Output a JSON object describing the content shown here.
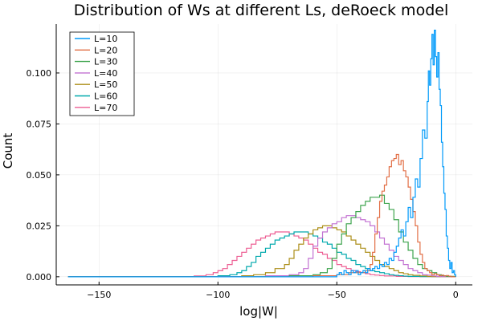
{
  "chart_data": {
    "type": "line",
    "title": "Distribution of Ws at different Ls, deRoeck model",
    "xlabel": "log|W|",
    "ylabel": "Count",
    "xlim": [
      -168,
      7
    ],
    "ylim": [
      -0.004,
      0.124
    ],
    "xticks": [
      -150,
      -100,
      -50,
      0
    ],
    "xtick_labels": [
      "−150",
      "−100",
      "−50",
      "0"
    ],
    "yticks": [
      0.0,
      0.025,
      0.05,
      0.075,
      0.1
    ],
    "ytick_labels": [
      "0.000",
      "0.025",
      "0.050",
      "0.075",
      "0.100"
    ],
    "grid": true,
    "legend_position": "top-left",
    "series": [
      {
        "name": "L=10",
        "color": "#009AFA",
        "x": [
          -163,
          -60,
          -50,
          -49,
          -48,
          -47,
          -46,
          -45,
          -44,
          -43,
          -42,
          -41,
          -40,
          -39,
          -38,
          -37,
          -36,
          -35,
          -34,
          -33,
          -32,
          -31,
          -30,
          -29,
          -28,
          -27,
          -26,
          -25,
          -24,
          -23,
          -22,
          -21,
          -20,
          -19,
          -18,
          -17,
          -16,
          -15,
          -14,
          -13,
          -12,
          -11.5,
          -11,
          -10.5,
          -10,
          -9.5,
          -9,
          -8.5,
          -8,
          -7.5,
          -7,
          -6.5,
          -6,
          -5.5,
          -5,
          -4.5,
          -4,
          -3.5,
          -3,
          -2.5,
          -2,
          -1.5,
          -1,
          -0.5,
          0
        ],
        "y": [
          0,
          0,
          0.001,
          0.002,
          0.001,
          0.003,
          0.002,
          0.001,
          0.003,
          0.002,
          0.003,
          0.001,
          0.002,
          0.003,
          0.002,
          0.004,
          0.003,
          0.004,
          0.005,
          0.004,
          0.006,
          0.005,
          0.007,
          0.006,
          0.009,
          0.008,
          0.012,
          0.015,
          0.019,
          0.023,
          0.02,
          0.027,
          0.034,
          0.029,
          0.039,
          0.048,
          0.044,
          0.058,
          0.072,
          0.068,
          0.086,
          0.101,
          0.094,
          0.107,
          0.119,
          0.104,
          0.121,
          0.108,
          0.098,
          0.11,
          0.092,
          0.084,
          0.066,
          0.054,
          0.041,
          0.033,
          0.02,
          0.014,
          0.008,
          0.004,
          0.007,
          0.002,
          0.003,
          0.001,
          0
        ]
      },
      {
        "name": "L=20",
        "color": "#E26F46",
        "x": [
          -163,
          -72,
          -60,
          -50,
          -45,
          -40,
          -38,
          -36,
          -35,
          -34,
          -33,
          -32,
          -31,
          -30,
          -29,
          -28,
          -27,
          -26,
          -25,
          -24,
          -23,
          -22,
          -21,
          -20,
          -19,
          -18,
          -17,
          -16,
          -15,
          -14,
          -13,
          -12,
          -11,
          -10,
          -9,
          -8,
          -7,
          -6,
          -5,
          -4,
          -3,
          -2,
          0
        ],
        "y": [
          0,
          0,
          0.0005,
          0.001,
          0.002,
          0.002,
          0.003,
          0.006,
          0.012,
          0.021,
          0.029,
          0.037,
          0.042,
          0.045,
          0.049,
          0.054,
          0.057,
          0.058,
          0.06,
          0.055,
          0.057,
          0.052,
          0.049,
          0.044,
          0.038,
          0.032,
          0.025,
          0.017,
          0.011,
          0.007,
          0.004,
          0.003,
          0.002,
          0.001,
          0.0015,
          0.001,
          0.0005,
          0.0008,
          0.0004,
          0.0006,
          0.0003,
          0,
          0
        ]
      },
      {
        "name": "L=30",
        "color": "#3DA44D",
        "x": [
          -163,
          -80,
          -70,
          -60,
          -57,
          -54,
          -52,
          -50,
          -48,
          -46,
          -44,
          -42,
          -40,
          -38,
          -36,
          -34,
          -32,
          -30,
          -28,
          -26,
          -24,
          -22,
          -20,
          -18,
          -16,
          -14,
          -12,
          -10,
          -8,
          -6,
          -4,
          0
        ],
        "y": [
          0,
          0,
          0.0005,
          0.001,
          0.002,
          0.004,
          0.009,
          0.016,
          0.021,
          0.026,
          0.029,
          0.032,
          0.035,
          0.037,
          0.039,
          0.039,
          0.04,
          0.036,
          0.033,
          0.028,
          0.022,
          0.017,
          0.013,
          0.009,
          0.006,
          0.004,
          0.003,
          0.002,
          0.001,
          0.0005,
          0.0002,
          0
        ]
      },
      {
        "name": "L=40",
        "color": "#C271D2",
        "x": [
          -163,
          -90,
          -80,
          -70,
          -66,
          -64,
          -62,
          -60,
          -58,
          -56,
          -54,
          -52,
          -50,
          -48,
          -46,
          -44,
          -42,
          -40,
          -38,
          -36,
          -34,
          -32,
          -30,
          -28,
          -26,
          -24,
          -22,
          -20,
          -18,
          -16,
          -14,
          -12,
          -10,
          -8,
          -6,
          0
        ],
        "y": [
          0,
          0,
          0.0005,
          0.001,
          0.002,
          0.004,
          0.009,
          0.015,
          0.019,
          0.022,
          0.024,
          0.026,
          0.027,
          0.029,
          0.03,
          0.03,
          0.029,
          0.028,
          0.027,
          0.025,
          0.022,
          0.019,
          0.016,
          0.013,
          0.01,
          0.008,
          0.006,
          0.004,
          0.003,
          0.002,
          0.001,
          0.0008,
          0.0004,
          0.0002,
          0.0001,
          0
        ]
      },
      {
        "name": "L=50",
        "color": "#AC8E18",
        "x": [
          -163,
          -100,
          -90,
          -85,
          -80,
          -76,
          -72,
          -70,
          -68,
          -66,
          -64,
          -62,
          -60,
          -58,
          -56,
          -54,
          -52,
          -50,
          -48,
          -46,
          -44,
          -42,
          -40,
          -38,
          -36,
          -34,
          -32,
          -30,
          -28,
          -26,
          -24,
          -22,
          -20,
          -18,
          -15,
          -12,
          -10,
          0
        ],
        "y": [
          0,
          0,
          0.0005,
          0.001,
          0.002,
          0.004,
          0.006,
          0.009,
          0.013,
          0.016,
          0.019,
          0.021,
          0.023,
          0.024,
          0.025,
          0.025,
          0.024,
          0.023,
          0.022,
          0.02,
          0.018,
          0.016,
          0.014,
          0.012,
          0.01,
          0.008,
          0.006,
          0.005,
          0.004,
          0.003,
          0.002,
          0.0015,
          0.001,
          0.0007,
          0.0004,
          0.0002,
          0.0001,
          0
        ]
      },
      {
        "name": "L=60",
        "color": "#00A9AD",
        "x": [
          -163,
          -110,
          -100,
          -95,
          -92,
          -90,
          -88,
          -86,
          -84,
          -82,
          -80,
          -78,
          -76,
          -74,
          -72,
          -70,
          -68,
          -66,
          -64,
          -62,
          -60,
          -58,
          -56,
          -54,
          -52,
          -50,
          -48,
          -46,
          -44,
          -42,
          -40,
          -38,
          -36,
          -34,
          -32,
          -30,
          -28,
          -26,
          -24,
          -22,
          -20,
          -15,
          0
        ],
        "y": [
          0,
          0,
          0.0005,
          0.001,
          0.002,
          0.003,
          0.005,
          0.007,
          0.01,
          0.012,
          0.014,
          0.016,
          0.018,
          0.019,
          0.02,
          0.021,
          0.022,
          0.022,
          0.022,
          0.021,
          0.02,
          0.019,
          0.017,
          0.016,
          0.014,
          0.012,
          0.011,
          0.009,
          0.008,
          0.006,
          0.005,
          0.004,
          0.003,
          0.0025,
          0.002,
          0.0015,
          0.001,
          0.0007,
          0.0005,
          0.0003,
          0.0002,
          0.0001,
          0
        ]
      },
      {
        "name": "L=70",
        "color": "#ED5E93",
        "x": [
          -163,
          -120,
          -110,
          -105,
          -102,
          -100,
          -98,
          -96,
          -94,
          -92,
          -90,
          -88,
          -86,
          -84,
          -82,
          -80,
          -78,
          -76,
          -74,
          -72,
          -70,
          -68,
          -66,
          -64,
          -62,
          -60,
          -58,
          -56,
          -54,
          -52,
          -50,
          -48,
          -46,
          -44,
          -42,
          -40,
          -38,
          -36,
          -34,
          -32,
          -30,
          -25,
          -20,
          0
        ],
        "y": [
          0,
          0,
          0.0004,
          0.001,
          0.002,
          0.003,
          0.004,
          0.006,
          0.008,
          0.01,
          0.012,
          0.014,
          0.016,
          0.018,
          0.019,
          0.02,
          0.021,
          0.022,
          0.022,
          0.022,
          0.021,
          0.02,
          0.019,
          0.018,
          0.016,
          0.014,
          0.012,
          0.011,
          0.009,
          0.008,
          0.006,
          0.005,
          0.004,
          0.003,
          0.0025,
          0.002,
          0.0015,
          0.001,
          0.0008,
          0.0006,
          0.0004,
          0.0002,
          0.0001,
          0
        ]
      }
    ]
  }
}
